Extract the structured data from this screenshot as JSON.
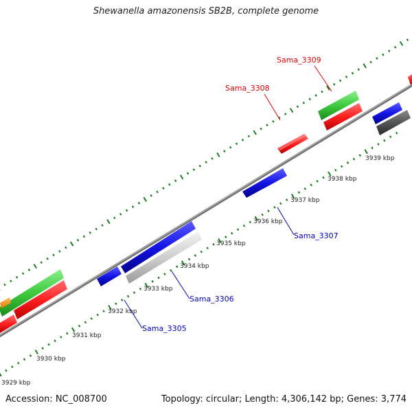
{
  "title": "Shewanella amazonensis SB2B, complete genome",
  "footer": {
    "accession": "Accession: NC_008700",
    "stats": "Topology: circular; Length: 4,306,142 bp; Genes: 3,774"
  },
  "colors": {
    "backbone": "#888888",
    "ticks": "#1a7f1a",
    "label_red": "#e00000",
    "label_blue": "#0000bb",
    "gene_red": "#ff2a2a",
    "gene_blue": "#1f1fe6",
    "gene_green": "#42cc42",
    "gene_gray": "#cfcfcf",
    "gene_darkgray": "#555555",
    "gene_orange": "#ff9a1a"
  },
  "tick_labels": [
    "3929 kbp",
    "3930 kbp",
    "3931 kbp",
    "3932 kbp",
    "3933 kbp",
    "3934 kbp",
    "3935 kbp",
    "3936 kbp",
    "3937 kbp",
    "3938 kbp",
    "3939 kbp"
  ],
  "gene_labels": [
    "Sama_3309",
    "Sama_3308",
    "Sama_3307",
    "Sama_3306",
    "Sama_3305"
  ]
}
